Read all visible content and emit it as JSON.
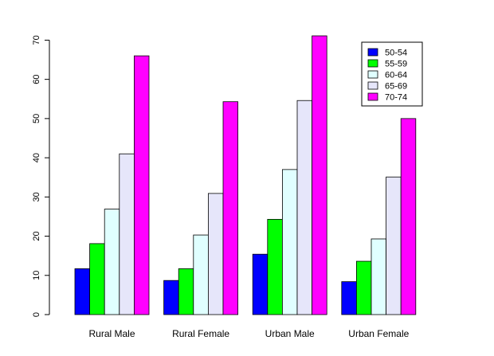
{
  "chart_data": {
    "type": "bar",
    "title": "",
    "xlabel": "",
    "ylabel": "",
    "categories": [
      "Rural Male",
      "Rural Female",
      "Urban Male",
      "Urban Female"
    ],
    "series": [
      {
        "name": "50-54",
        "color": "#0000FF",
        "values": [
          11.7,
          8.7,
          15.4,
          8.4
        ]
      },
      {
        "name": "55-59",
        "color": "#00FF00",
        "values": [
          18.1,
          11.7,
          24.3,
          13.6
        ]
      },
      {
        "name": "60-64",
        "color": "#E0FFFF",
        "values": [
          26.9,
          20.3,
          37.0,
          19.3
        ]
      },
      {
        "name": "65-69",
        "color": "#E6E6FA",
        "values": [
          41.0,
          30.9,
          54.6,
          35.1
        ]
      },
      {
        "name": "70-74",
        "color": "#FF00FF",
        "values": [
          66.0,
          54.3,
          71.1,
          50.0
        ]
      }
    ],
    "yticks": [
      0,
      10,
      20,
      30,
      40,
      50,
      60,
      70
    ],
    "ylim": [
      0,
      71.1
    ],
    "grid": false,
    "legend_position": "top-right"
  }
}
